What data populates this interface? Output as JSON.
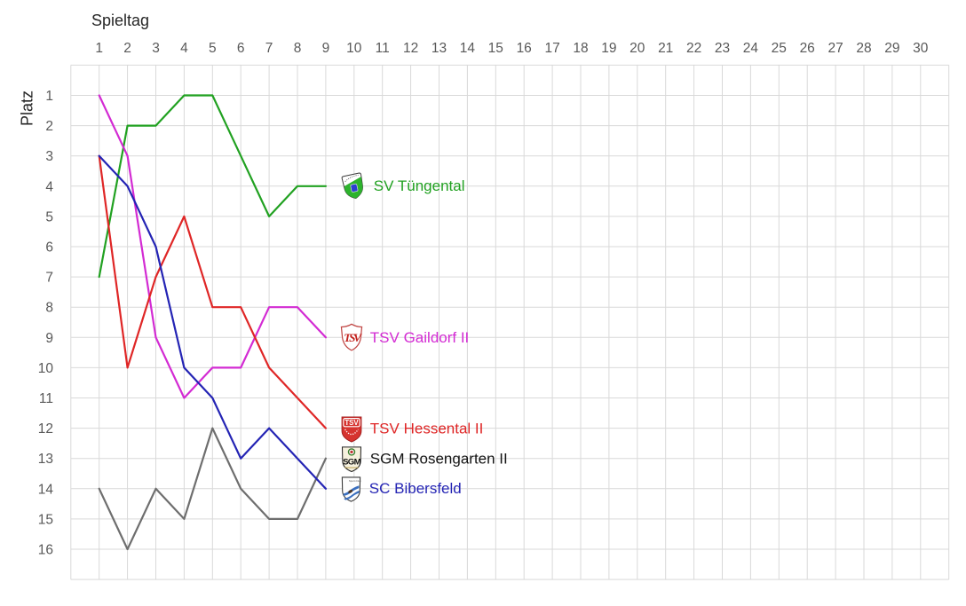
{
  "axes": {
    "x_title": "Spieltag",
    "y_title": "Platz",
    "x_ticks": [
      "1",
      "2",
      "3",
      "4",
      "5",
      "6",
      "7",
      "8",
      "9",
      "10",
      "11",
      "12",
      "13",
      "14",
      "15",
      "16",
      "17",
      "18",
      "19",
      "20",
      "21",
      "22",
      "23",
      "24",
      "25",
      "26",
      "27",
      "28",
      "29",
      "30"
    ],
    "y_ticks": [
      "1",
      "2",
      "3",
      "4",
      "5",
      "6",
      "7",
      "8",
      "9",
      "10",
      "11",
      "12",
      "13",
      "14",
      "15",
      "16"
    ],
    "tick_color": "#595959",
    "grid_color": "#D9D9D9"
  },
  "chart_data": {
    "type": "line",
    "title": "",
    "xlabel": "Spieltag",
    "ylabel": "Platz",
    "x": [
      1,
      2,
      3,
      4,
      5,
      6,
      7,
      8,
      9
    ],
    "xlim": [
      0,
      31
    ],
    "ylim": [
      1,
      16
    ],
    "y_axis_reversed": true,
    "grid": true,
    "legend_position": "right-of-last-point",
    "series": [
      {
        "name": "SV Tüngental",
        "color": "#21A121",
        "label_color": "#21A121",
        "values": [
          7,
          2,
          2,
          1,
          1,
          3,
          5,
          4,
          4
        ]
      },
      {
        "name": "TSV Gaildorf II",
        "color": "#D32BD3",
        "label_color": "#D32BD3",
        "values": [
          1,
          3,
          9,
          11,
          10,
          10,
          8,
          8,
          9
        ]
      },
      {
        "name": "TSV Hessental II",
        "color": "#DF2626",
        "label_color": "#DF2626",
        "values": [
          3,
          10,
          7,
          5,
          8,
          8,
          10,
          11,
          12
        ]
      },
      {
        "name": "SGM Rosengarten II",
        "color": "#6E6E6E",
        "label_color": "#141414",
        "values": [
          14,
          16,
          14,
          15,
          12,
          14,
          15,
          15,
          13
        ]
      },
      {
        "name": "SC Bibersfeld",
        "color": "#2424B4",
        "label_color": "#2424B4",
        "values": [
          3,
          4,
          6,
          10,
          11,
          13,
          12,
          13,
          14
        ]
      }
    ]
  },
  "legend": {
    "hessental_logo_text": "TSV",
    "gaildorf_logo_text": "TSV",
    "rosengarten_logo_text": "SGM",
    "bibersfeld_logo_text": "Sport-Club"
  }
}
